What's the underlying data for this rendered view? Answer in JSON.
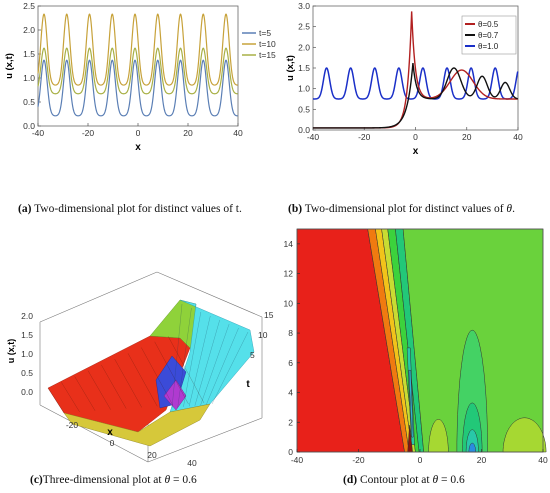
{
  "captions": {
    "a": {
      "label": "(a)",
      "text": " Two-dimensional plot for distinct values of t."
    },
    "b": {
      "label": "(b)",
      "text_before": " Two-dimensional plot for distinct values of ",
      "symbol": "θ",
      "text_after": "."
    },
    "c": {
      "label": "(c)",
      "text_before": "Three-dimensional plot at ",
      "symbol": "θ",
      "text_after": " = 0.6"
    },
    "d": {
      "label": "(d)",
      "text_before": " Contour plot at ",
      "symbol": "θ",
      "text_after": " = 0.6"
    }
  },
  "chart_data": [
    {
      "id": "a",
      "type": "line",
      "xlabel": "x",
      "ylabel": "u (x,t)",
      "xlim": [
        -40,
        40
      ],
      "ylim": [
        0,
        2.5
      ],
      "xticks": [
        "-40",
        "-20",
        "0",
        "20",
        "40"
      ],
      "yticks": [
        "0.0",
        "0.5",
        "1.0",
        "1.5",
        "2.0",
        "2.5"
      ],
      "legend_position": "right",
      "grid": false,
      "period": 9.1,
      "peak_positions": [
        -37.6,
        -28.5,
        -19.4,
        -10.3,
        -1.2,
        7.9,
        17.0,
        26.1,
        35.2
      ],
      "series": [
        {
          "name": "t=5",
          "color": "#5b7fb5",
          "min": 0.21,
          "max": 1.37
        },
        {
          "name": "t=10",
          "color": "#c7a23a",
          "min": 0.85,
          "max": 2.33
        },
        {
          "name": "t=15",
          "color": "#a8b045",
          "min": 0.67,
          "max": 1.62
        }
      ]
    },
    {
      "id": "b",
      "type": "line",
      "xlabel": "x",
      "ylabel": "u (x,t)",
      "xlim": [
        -40,
        40
      ],
      "ylim": [
        0,
        3.0
      ],
      "xticks": [
        "-40",
        "-20",
        "0",
        "20",
        "40"
      ],
      "yticks": [
        "0.0",
        "0.5",
        "1.0",
        "1.5",
        "2.0",
        "2.5",
        "3.0"
      ],
      "legend_position": "top-right",
      "grid": false,
      "series": [
        {
          "name": "θ=0.5",
          "color": "#b22020",
          "spike_x": -1.5,
          "spike_y": 2.87,
          "hump_x": 18,
          "hump_y": 1.45
        },
        {
          "name": "θ=0.7",
          "color": "#111111",
          "spike_x": -1.0,
          "spike_y": 1.62,
          "hump_x": 15,
          "hump_y": 1.5
        },
        {
          "name": "θ=1.0",
          "color": "#1a2fc8",
          "period": 9.4,
          "min": 0.75,
          "max": 1.5
        }
      ]
    },
    {
      "id": "c",
      "type": "surface",
      "xlabel": "x",
      "ylabel": "t",
      "zlabel": "u (x,t)",
      "xticks": [
        "-20",
        "0",
        "20",
        "40"
      ],
      "yticks": [
        "5",
        "10",
        "15"
      ],
      "zticks": [
        "0.0",
        "0.5",
        "1.0",
        "1.5",
        "2.0"
      ]
    },
    {
      "id": "d",
      "type": "contour",
      "xlim": [
        -40,
        40
      ],
      "ylim": [
        0,
        15
      ],
      "xticks": [
        "-40",
        "-20",
        "0",
        "20",
        "40"
      ],
      "yticks": [
        "0",
        "2",
        "4",
        "6",
        "8",
        "10",
        "12",
        "14"
      ],
      "colors": [
        "#e8211a",
        "#f07a10",
        "#f2c31a",
        "#c8dc32",
        "#3cd23c",
        "#22c878",
        "#28c8a8",
        "#30b4d2",
        "#2a8ce0"
      ]
    }
  ]
}
